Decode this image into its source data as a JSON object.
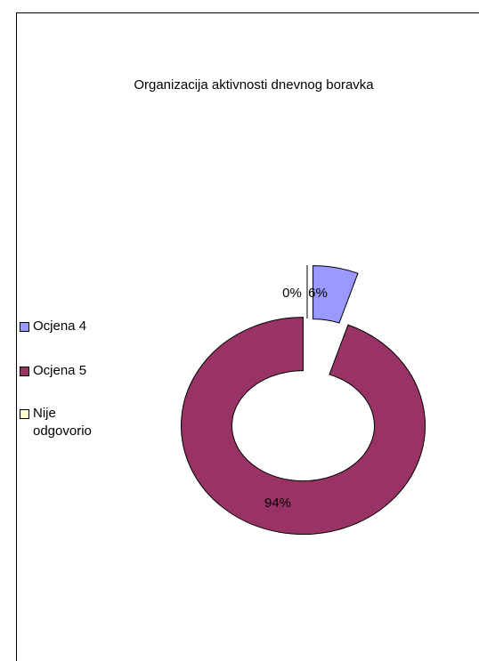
{
  "chart_data": {
    "type": "donut",
    "title": "Organizacija aktivnosti dnevnog boravka",
    "categories": [
      "Ocjena 4",
      "Ocjena 5",
      "Nije odgovorio"
    ],
    "values": [
      6,
      94,
      0
    ],
    "value_labels": [
      "6%",
      "94%",
      "0%"
    ],
    "colors": [
      "#9999ff",
      "#993366",
      "#ffffcc"
    ],
    "legend": "left"
  }
}
